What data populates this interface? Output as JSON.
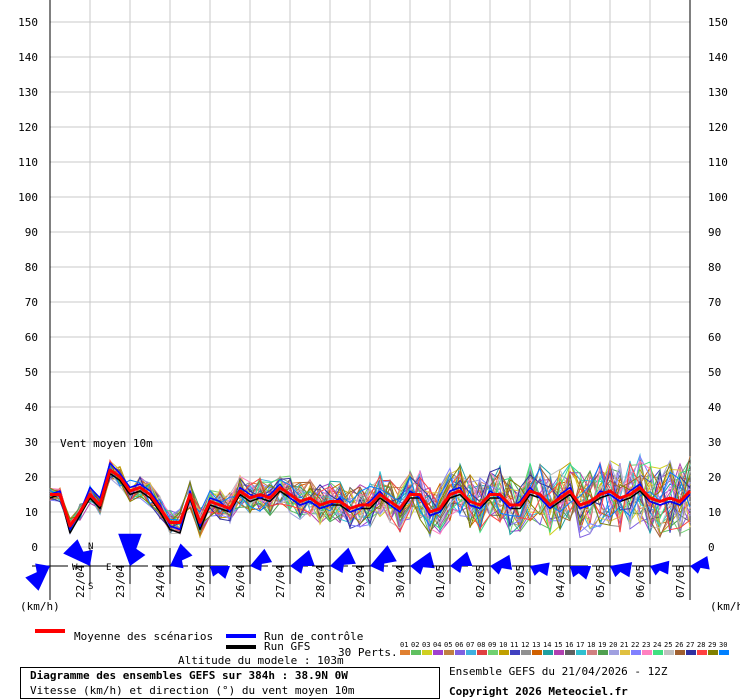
{
  "chart_data": {
    "type": "line",
    "title": "Diagramme des ensembles GEFS sur 384h : 38.9N 0W",
    "subtitle": "Vitesse (km/h) et direction (°) du vent moyen 10m",
    "y_unit": "(km/h)",
    "panel_label": "Vent moyen 10m",
    "ylim": [
      0,
      150
    ],
    "yticks": [
      0,
      10,
      20,
      30,
      40,
      50,
      60,
      70,
      80,
      90,
      100,
      110,
      120,
      130,
      140,
      150
    ],
    "grid": true,
    "x_date_labels": [
      "22/04",
      "23/04",
      "24/04",
      "25/04",
      "26/04",
      "27/04",
      "28/04",
      "29/04",
      "30/04",
      "01/05",
      "02/05",
      "03/05",
      "04/05",
      "05/05",
      "06/05",
      "07/05"
    ],
    "x_step_hours": 6,
    "mean_values": [
      15,
      15,
      6,
      10,
      15,
      12,
      22,
      20,
      16,
      17,
      15,
      11,
      7,
      7,
      15,
      7,
      13,
      12,
      11,
      16,
      14,
      15,
      14,
      17,
      15,
      13,
      14,
      12,
      13,
      13,
      11,
      12,
      12,
      15,
      13,
      11,
      15,
      15,
      10,
      11,
      15,
      16,
      13,
      12,
      15,
      15,
      12,
      12,
      16,
      15,
      12,
      14,
      16,
      12,
      13,
      15,
      16,
      14,
      15,
      17,
      14,
      13,
      14,
      13,
      16
    ],
    "control_values": [
      15,
      16,
      5,
      10,
      17,
      14,
      24,
      21,
      17,
      18,
      16,
      12,
      6,
      5,
      16,
      6,
      14,
      13,
      10,
      17,
      15,
      14,
      15,
      18,
      14,
      12,
      13,
      11,
      12,
      14,
      10,
      11,
      13,
      16,
      12,
      10,
      16,
      14,
      9,
      10,
      16,
      17,
      12,
      11,
      16,
      14,
      11,
      13,
      17,
      14,
      11,
      15,
      17,
      11,
      12,
      16,
      15,
      13,
      16,
      18,
      13,
      12,
      13,
      12,
      15
    ],
    "gfs_values": [
      14,
      15,
      4,
      9,
      14,
      11,
      21,
      19,
      15,
      16,
      14,
      10,
      5,
      4,
      14,
      5,
      12,
      11,
      10,
      15,
      13,
      14,
      13,
      16,
      14,
      12,
      13,
      11,
      12,
      12,
      10,
      11,
      11,
      14,
      12,
      10,
      14,
      14,
      9,
      10,
      14,
      15,
      12,
      11,
      14,
      14,
      11,
      11,
      15,
      14,
      11,
      13,
      15,
      11,
      12,
      14,
      15,
      13,
      14,
      16,
      13,
      12,
      13,
      12,
      15
    ],
    "perturbation_count": 30,
    "perturbation_colors": [
      "#e08030",
      "#60c060",
      "#d0d020",
      "#a040d0",
      "#c08040",
      "#8060e0",
      "#40b0e0",
      "#e04040",
      "#70d070",
      "#c0a000",
      "#4040c0",
      "#909090",
      "#d06000",
      "#20a0a0",
      "#b040b0",
      "#606060",
      "#30c0d0",
      "#d08080",
      "#50a050",
      "#a0a0e0",
      "#e0c040",
      "#8080ff",
      "#ff80c0",
      "#40e080",
      "#c0c0c0",
      "#a06030",
      "#3030a0",
      "#ff4040",
      "#808000",
      "#0080ff"
    ],
    "wind_roses": [
      {
        "label": "N",
        "dir": 225,
        "speed": 16
      },
      {
        "label": "",
        "dir": 315,
        "speed": 18
      },
      {
        "label": "",
        "dir": 0,
        "speed": 22
      },
      {
        "label": "",
        "dir": 45,
        "speed": 14
      },
      {
        "label": "",
        "dir": 110,
        "speed": 10
      },
      {
        "label": "",
        "dir": 60,
        "speed": 12
      },
      {
        "label": "",
        "dir": 70,
        "speed": 14
      },
      {
        "label": "",
        "dir": 65,
        "speed": 15
      },
      {
        "label": "",
        "dir": 60,
        "speed": 16
      },
      {
        "label": "",
        "dir": 75,
        "speed": 14
      },
      {
        "label": "",
        "dir": 70,
        "speed": 12
      },
      {
        "label": "",
        "dir": 80,
        "speed": 12
      },
      {
        "label": "",
        "dir": 100,
        "speed": 10
      },
      {
        "label": "",
        "dir": 110,
        "speed": 11
      },
      {
        "label": "",
        "dir": 100,
        "speed": 12
      },
      {
        "label": "",
        "dir": 95,
        "speed": 10
      },
      {
        "label": "",
        "dir": 80,
        "speed": 10
      }
    ]
  },
  "legend": {
    "mean": "Moyenne des scénarios",
    "control": "Run de contrôle",
    "gfs": "Run GFS",
    "perts": "30 Perts.",
    "mean_color": "#ff0000",
    "control_color": "#0000ff",
    "gfs_color": "#000000",
    "pert_numbers": [
      "01",
      "02",
      "03",
      "04",
      "05",
      "06",
      "07",
      "08",
      "09",
      "10",
      "11",
      "12",
      "13",
      "14",
      "15",
      "16",
      "17",
      "18",
      "19",
      "20",
      "21",
      "22",
      "23",
      "24",
      "25",
      "26",
      "27",
      "28",
      "29",
      "30"
    ]
  },
  "footer": {
    "altitude": "Altitude du modele : 103m",
    "title_line": "Diagramme des ensembles GEFS sur 384h : 38.9N 0W",
    "subtitle_line": "Vitesse (km/h) et direction (°) du vent moyen 10m",
    "ensemble_date": "Ensemble GEFS du 21/04/2026 - 12Z",
    "copyright": "Copyright 2026 Meteociel.fr"
  },
  "compass": {
    "n": "N",
    "s": "S",
    "w": "W",
    "e": "E"
  }
}
